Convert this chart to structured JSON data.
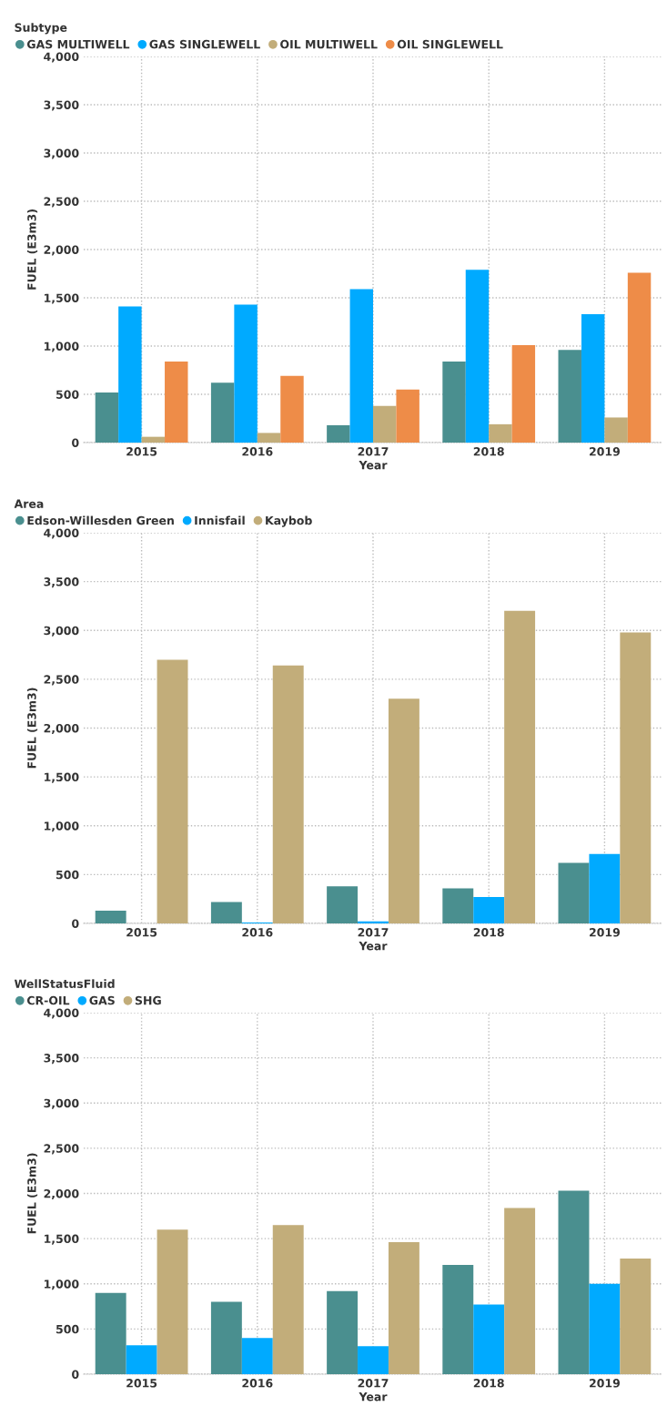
{
  "chart_data": [
    {
      "type": "bar",
      "legend_title": "Subtype",
      "xlabel": "Year",
      "ylabel": "FUEL (E3m3)",
      "categories": [
        "2015",
        "2016",
        "2017",
        "2018",
        "2019"
      ],
      "series": [
        {
          "name": "GAS MULTIWELL",
          "color": "#4a8f8f",
          "values": [
            520,
            620,
            180,
            840,
            960
          ]
        },
        {
          "name": "GAS SINGLEWELL",
          "color": "#00aaff",
          "values": [
            1410,
            1430,
            1590,
            1790,
            1330
          ]
        },
        {
          "name": "OIL MULTIWELL",
          "color": "#c2ad7a",
          "values": [
            60,
            100,
            380,
            190,
            260
          ]
        },
        {
          "name": "OIL SINGLEWELL",
          "color": "#ee8c48",
          "values": [
            840,
            690,
            550,
            1010,
            1760
          ]
        }
      ],
      "ylim": [
        0,
        4000
      ],
      "yticks": [
        0,
        500,
        {
          "value": 1000,
          "label": "1,000"
        },
        {
          "value": 1500,
          "label": "1,500"
        },
        {
          "value": 2000,
          "label": "2,000"
        },
        {
          "value": 2500,
          "label": "2,500"
        },
        {
          "value": 3000,
          "label": "3,000"
        },
        {
          "value": 3500,
          "label": "3,500"
        },
        {
          "value": 4000,
          "label": "4,000"
        }
      ],
      "grid": true,
      "legend": "top left"
    },
    {
      "type": "bar",
      "legend_title": "Area",
      "xlabel": "Year",
      "ylabel": "FUEL (E3m3)",
      "categories": [
        "2015",
        "2016",
        "2017",
        "2018",
        "2019"
      ],
      "series": [
        {
          "name": "Edson-Willesden Green",
          "color": "#4a8f8f",
          "values": [
            130,
            220,
            380,
            360,
            620
          ]
        },
        {
          "name": "Innisfail",
          "color": "#00aaff",
          "values": [
            0,
            10,
            20,
            270,
            710
          ]
        },
        {
          "name": "Kaybob",
          "color": "#c2ad7a",
          "values": [
            2700,
            2640,
            2300,
            3200,
            2980
          ]
        }
      ],
      "ylim": [
        0,
        4000
      ],
      "yticks": [
        0,
        500,
        {
          "value": 1000,
          "label": "1,000"
        },
        {
          "value": 1500,
          "label": "1,500"
        },
        {
          "value": 2000,
          "label": "2,000"
        },
        {
          "value": 2500,
          "label": "2,500"
        },
        {
          "value": 3000,
          "label": "3,000"
        },
        {
          "value": 3500,
          "label": "3,500"
        },
        {
          "value": 4000,
          "label": "4,000"
        }
      ],
      "grid": true,
      "legend": "top left"
    },
    {
      "type": "bar",
      "legend_title": "WellStatusFluid",
      "xlabel": "Year",
      "ylabel": "FUEL (E3m3)",
      "categories": [
        "2015",
        "2016",
        "2017",
        "2018",
        "2019"
      ],
      "series": [
        {
          "name": "CR-OIL",
          "color": "#4a8f8f",
          "values": [
            900,
            800,
            920,
            1210,
            2030
          ]
        },
        {
          "name": "GAS",
          "color": "#00aaff",
          "values": [
            320,
            400,
            310,
            770,
            1000
          ]
        },
        {
          "name": "SHG",
          "color": "#c2ad7a",
          "values": [
            1600,
            1650,
            1460,
            1840,
            1280
          ]
        }
      ],
      "ylim": [
        0,
        4000
      ],
      "yticks": [
        0,
        500,
        {
          "value": 1000,
          "label": "1,000"
        },
        {
          "value": 1500,
          "label": "1,500"
        },
        {
          "value": 2000,
          "label": "2,000"
        },
        {
          "value": 2500,
          "label": "2,500"
        },
        {
          "value": 3000,
          "label": "3,000"
        },
        {
          "value": 3500,
          "label": "3,500"
        },
        {
          "value": 4000,
          "label": "4,000"
        }
      ],
      "grid": true,
      "legend": "top left"
    }
  ]
}
